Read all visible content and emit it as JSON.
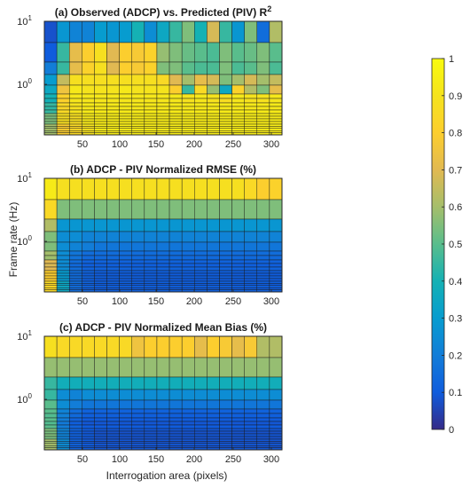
{
  "figure": {
    "ylabel": "Frame rate (Hz)",
    "xlabel": "Interrogation area (pixels)"
  },
  "colorbar": {
    "ticks": [
      "0",
      "0.1",
      "0.2",
      "0.3",
      "0.4",
      "0.5",
      "0.6",
      "0.7",
      "0.8",
      "0.9",
      "1"
    ],
    "range": [
      0,
      1
    ],
    "colormap": "parula"
  },
  "chart_data": [
    {
      "type": "heatmap",
      "title": "(a) Observed (ADCP) vs. Predicted (PIV) R",
      "title_sup": "2",
      "x_tick_labels": [
        "50",
        "100",
        "150",
        "200",
        "250",
        "300"
      ],
      "y_tick_labels": [
        {
          "base": "10",
          "exp": "1"
        },
        {
          "base": "10",
          "exp": "0"
        }
      ],
      "yscale": "log",
      "grid": "per-cell outlines",
      "row_groups": [
        {
          "label": "row band 1 (top)",
          "values": [
            0.08,
            0.28,
            0.22,
            0.22,
            0.3,
            0.28,
            0.3,
            0.4,
            0.25,
            0.35,
            0.45,
            0.55,
            0.4,
            0.68,
            0.45,
            0.28,
            0.55,
            0.15,
            0.62
          ]
        },
        {
          "label": "row band 2",
          "values": [
            0.1,
            0.45,
            0.72,
            0.8,
            0.88,
            0.7,
            0.8,
            0.78,
            0.82,
            0.58,
            0.55,
            0.52,
            0.5,
            0.48,
            0.55,
            0.5,
            0.52,
            0.55,
            0.5
          ]
        },
        {
          "label": "row band 3",
          "values": [
            0.2,
            0.45,
            0.72,
            0.82,
            0.88,
            0.7,
            0.8,
            0.78,
            0.82,
            0.55,
            0.55,
            0.5,
            0.48,
            0.48,
            0.55,
            0.48,
            0.5,
            0.55,
            0.48
          ]
        },
        {
          "label": "row band 4",
          "values": [
            0.3,
            0.65,
            0.88,
            0.88,
            0.88,
            0.88,
            0.88,
            0.88,
            0.88,
            0.85,
            0.7,
            0.6,
            0.72,
            0.68,
            0.55,
            0.6,
            0.68,
            0.6,
            0.65
          ]
        },
        {
          "label": "row band 5",
          "values": [
            0.35,
            0.75,
            0.92,
            0.9,
            0.9,
            0.9,
            0.92,
            0.9,
            0.9,
            0.9,
            0.8,
            0.45,
            0.85,
            0.58,
            0.35,
            0.82,
            0.62,
            0.55,
            0.72
          ]
        },
        {
          "label": "row band 6",
          "values": [
            0.4,
            0.82,
            0.92,
            0.92,
            0.92,
            0.92,
            0.92,
            0.92,
            0.92,
            0.92,
            0.92,
            0.9,
            0.92,
            0.9,
            0.88,
            0.92,
            0.9,
            0.9,
            0.92
          ]
        },
        {
          "label": "row band 7",
          "values": [
            0.45,
            0.85,
            0.9,
            0.93,
            0.93,
            0.93,
            0.93,
            0.93,
            0.93,
            0.93,
            0.93,
            0.93,
            0.93,
            0.93,
            0.93,
            0.93,
            0.93,
            0.93,
            0.93
          ]
        },
        {
          "label": "row band 8",
          "values": [
            0.55,
            0.88,
            0.88,
            0.93,
            0.94,
            0.94,
            0.94,
            0.94,
            0.94,
            0.94,
            0.94,
            0.94,
            0.94,
            0.94,
            0.94,
            0.94,
            0.94,
            0.94,
            0.94
          ]
        },
        {
          "label": "row band 9 (bottom)",
          "values": [
            0.6,
            0.8,
            0.85,
            0.9,
            0.94,
            0.94,
            0.94,
            0.94,
            0.94,
            0.94,
            0.94,
            0.94,
            0.94,
            0.94,
            0.94,
            0.94,
            0.94,
            0.94,
            0.94
          ]
        }
      ]
    },
    {
      "type": "heatmap",
      "title": "(b) ADCP - PIV Normalized RMSE (%)",
      "x_tick_labels": [
        "50",
        "100",
        "150",
        "200",
        "250",
        "300"
      ],
      "y_tick_labels": [
        {
          "base": "10",
          "exp": "1"
        },
        {
          "base": "10",
          "exp": "0"
        }
      ],
      "yscale": "log",
      "grid": "per-cell outlines",
      "row_groups": [
        {
          "label": "row band 1 (top)",
          "values": [
            0.93,
            0.88,
            0.88,
            0.88,
            0.88,
            0.88,
            0.88,
            0.88,
            0.88,
            0.88,
            0.88,
            0.88,
            0.88,
            0.88,
            0.88,
            0.88,
            0.85,
            0.8,
            0.82
          ]
        },
        {
          "label": "row band 2",
          "values": [
            0.85,
            0.55,
            0.55,
            0.55,
            0.55,
            0.55,
            0.55,
            0.55,
            0.55,
            0.55,
            0.55,
            0.55,
            0.55,
            0.55,
            0.55,
            0.55,
            0.55,
            0.55,
            0.55
          ]
        },
        {
          "label": "row band 3",
          "values": [
            0.62,
            0.28,
            0.28,
            0.28,
            0.28,
            0.28,
            0.28,
            0.28,
            0.28,
            0.28,
            0.28,
            0.28,
            0.28,
            0.28,
            0.28,
            0.28,
            0.28,
            0.28,
            0.28
          ]
        },
        {
          "label": "row band 4",
          "values": [
            0.55,
            0.25,
            0.25,
            0.22,
            0.22,
            0.22,
            0.22,
            0.22,
            0.22,
            0.22,
            0.22,
            0.22,
            0.22,
            0.22,
            0.22,
            0.22,
            0.22,
            0.22,
            0.22
          ]
        },
        {
          "label": "row band 5",
          "values": [
            0.55,
            0.25,
            0.22,
            0.2,
            0.18,
            0.18,
            0.18,
            0.18,
            0.18,
            0.18,
            0.18,
            0.18,
            0.18,
            0.18,
            0.18,
            0.18,
            0.18,
            0.18,
            0.18
          ]
        },
        {
          "label": "row band 6",
          "values": [
            0.6,
            0.25,
            0.18,
            0.15,
            0.15,
            0.15,
            0.15,
            0.15,
            0.15,
            0.15,
            0.15,
            0.15,
            0.15,
            0.15,
            0.15,
            0.15,
            0.15,
            0.15,
            0.15
          ]
        },
        {
          "label": "row band 7",
          "values": [
            0.7,
            0.25,
            0.15,
            0.12,
            0.12,
            0.12,
            0.12,
            0.12,
            0.12,
            0.12,
            0.12,
            0.12,
            0.12,
            0.12,
            0.12,
            0.12,
            0.12,
            0.12,
            0.12
          ]
        },
        {
          "label": "row band 8",
          "values": [
            0.8,
            0.3,
            0.15,
            0.12,
            0.11,
            0.11,
            0.11,
            0.11,
            0.11,
            0.11,
            0.11,
            0.11,
            0.11,
            0.11,
            0.11,
            0.11,
            0.11,
            0.11,
            0.11
          ]
        },
        {
          "label": "row band 9 (bottom)",
          "values": [
            0.85,
            0.35,
            0.15,
            0.12,
            0.11,
            0.11,
            0.11,
            0.11,
            0.11,
            0.11,
            0.11,
            0.11,
            0.11,
            0.11,
            0.11,
            0.11,
            0.11,
            0.11,
            0.11
          ]
        }
      ]
    },
    {
      "type": "heatmap",
      "title": "(c) ADCP - PIV Normalized Mean Bias (%)",
      "x_tick_labels": [
        "50",
        "100",
        "150",
        "200",
        "250",
        "300"
      ],
      "y_tick_labels": [
        {
          "base": "10",
          "exp": "1"
        },
        {
          "base": "10",
          "exp": "0"
        }
      ],
      "yscale": "log",
      "grid": "per-cell outlines",
      "row_groups": [
        {
          "label": "row band 1 (top)",
          "values": [
            0.88,
            0.85,
            0.85,
            0.85,
            0.85,
            0.85,
            0.85,
            0.75,
            0.8,
            0.8,
            0.8,
            0.8,
            0.72,
            0.8,
            0.78,
            0.72,
            0.78,
            0.62,
            0.62
          ]
        },
        {
          "label": "row band 2",
          "values": [
            0.58,
            0.58,
            0.58,
            0.58,
            0.58,
            0.58,
            0.58,
            0.58,
            0.58,
            0.58,
            0.58,
            0.58,
            0.58,
            0.58,
            0.58,
            0.58,
            0.58,
            0.58,
            0.58
          ]
        },
        {
          "label": "row band 3",
          "values": [
            0.45,
            0.38,
            0.38,
            0.38,
            0.38,
            0.38,
            0.38,
            0.38,
            0.38,
            0.38,
            0.38,
            0.38,
            0.38,
            0.38,
            0.38,
            0.38,
            0.38,
            0.38,
            0.38
          ]
        },
        {
          "label": "row band 4",
          "values": [
            0.45,
            0.25,
            0.22,
            0.25,
            0.25,
            0.25,
            0.25,
            0.25,
            0.25,
            0.25,
            0.25,
            0.25,
            0.25,
            0.25,
            0.25,
            0.25,
            0.25,
            0.25,
            0.25
          ]
        },
        {
          "label": "row band 5",
          "values": [
            0.5,
            0.25,
            0.2,
            0.18,
            0.18,
            0.18,
            0.18,
            0.18,
            0.18,
            0.18,
            0.18,
            0.18,
            0.18,
            0.18,
            0.18,
            0.18,
            0.18,
            0.18,
            0.18
          ]
        },
        {
          "label": "row band 6",
          "values": [
            0.5,
            0.22,
            0.15,
            0.12,
            0.12,
            0.12,
            0.12,
            0.12,
            0.12,
            0.12,
            0.12,
            0.12,
            0.12,
            0.12,
            0.12,
            0.12,
            0.12,
            0.12,
            0.12
          ]
        },
        {
          "label": "row band 7",
          "values": [
            0.5,
            0.2,
            0.12,
            0.1,
            0.1,
            0.1,
            0.1,
            0.1,
            0.1,
            0.1,
            0.1,
            0.1,
            0.1,
            0.1,
            0.1,
            0.1,
            0.1,
            0.1,
            0.1
          ]
        },
        {
          "label": "row band 8",
          "values": [
            0.55,
            0.22,
            0.12,
            0.1,
            0.09,
            0.09,
            0.09,
            0.09,
            0.09,
            0.09,
            0.09,
            0.09,
            0.09,
            0.09,
            0.09,
            0.09,
            0.09,
            0.09,
            0.09
          ]
        },
        {
          "label": "row band 9 (bottom)",
          "values": [
            0.6,
            0.25,
            0.12,
            0.1,
            0.09,
            0.09,
            0.09,
            0.09,
            0.09,
            0.09,
            0.09,
            0.09,
            0.09,
            0.09,
            0.09,
            0.09,
            0.09,
            0.09,
            0.09
          ]
        }
      ]
    }
  ]
}
